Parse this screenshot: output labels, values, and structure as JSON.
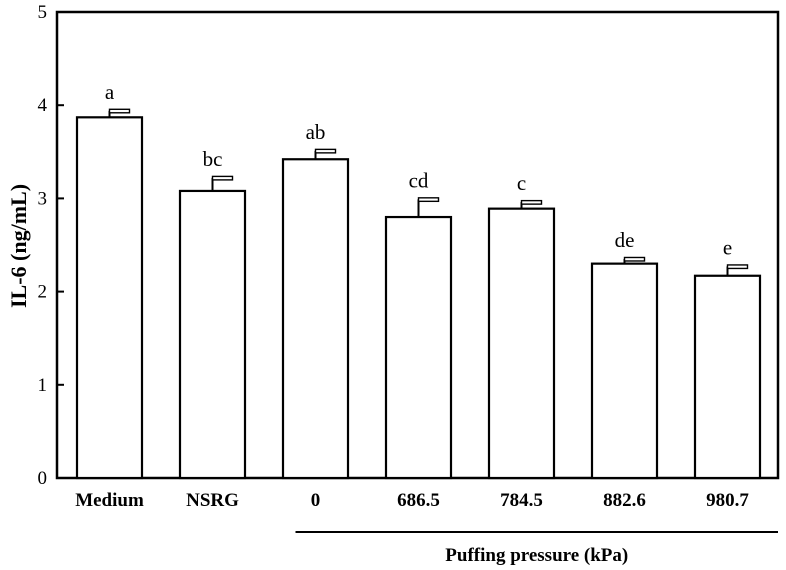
{
  "chart_data": {
    "type": "bar",
    "categories": [
      "Medium",
      "NSRG",
      "0",
      "686.5",
      "784.5",
      "882.6",
      "980.7"
    ],
    "values": [
      3.87,
      3.08,
      3.42,
      2.8,
      2.89,
      2.3,
      2.17
    ],
    "errors": [
      0.07,
      0.14,
      0.09,
      0.19,
      0.07,
      0.05,
      0.1
    ],
    "significance_letters": [
      "a",
      "bc",
      "ab",
      "cd",
      "c",
      "de",
      "e"
    ],
    "title": "",
    "xlabel": "",
    "ylabel": "IL-6 (ng/mL)",
    "ylim": [
      0,
      5
    ],
    "yticks": [
      0,
      1,
      2,
      3,
      4,
      5
    ],
    "group_label": {
      "text": "Puffing pressure (kPa)",
      "from_index": 2,
      "to_index": 6
    },
    "bar_color": "#ffffff",
    "edge_color": "#000000"
  }
}
